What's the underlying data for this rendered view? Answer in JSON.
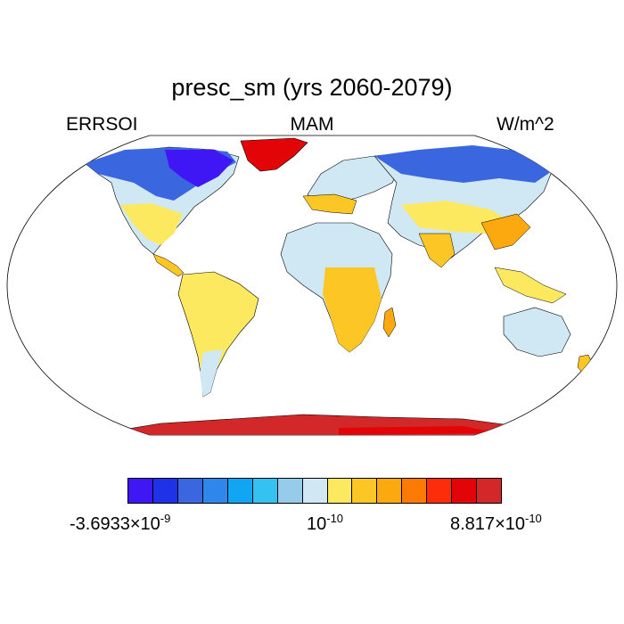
{
  "title": "presc_sm (yrs 2060-2079)",
  "left_label": "ERRSOI",
  "center_label": "MAM",
  "right_label": "W/m^2",
  "colorbar": {
    "colors": [
      "#3f17f5",
      "#1f32e8",
      "#3a66e0",
      "#2f87ec",
      "#11a6f4",
      "#33c2f2",
      "#95cceb",
      "#cfe8f4",
      "#fde95f",
      "#fcc724",
      "#fca80f",
      "#fd7a04",
      "#fd2c0a",
      "#e30407",
      "#d2282a"
    ],
    "labels": [
      {
        "mantissa": "-3.6933",
        "times": "×",
        "base": "10",
        "exp": "-9"
      },
      {
        "mantissa": "",
        "times": "",
        "base": "10",
        "exp": "-10"
      },
      {
        "mantissa": "8.817",
        "times": "×",
        "base": "10",
        "exp": "-10"
      }
    ]
  }
}
